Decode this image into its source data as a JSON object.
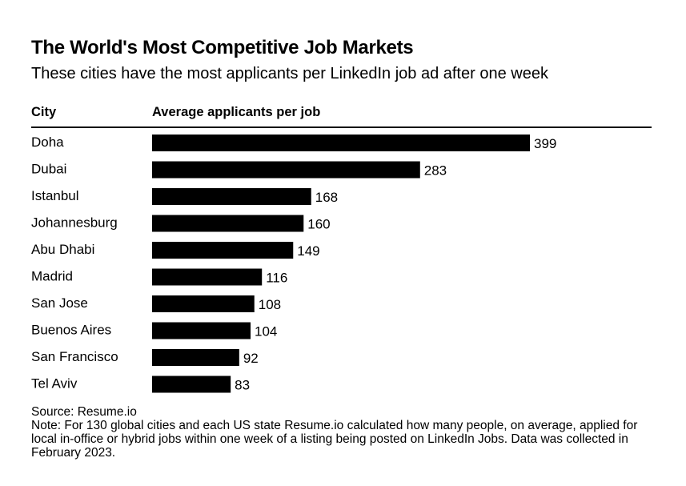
{
  "title": "The World's Most Competitive Job Markets",
  "subtitle": "These cities have the most applicants per LinkedIn job ad after one week",
  "columns": {
    "city": "City",
    "value": "Average applicants per job"
  },
  "footer": {
    "source": "Source: Resume.io",
    "note": "Note: For 130 global cities and each US state Resume.io calculated how many people, on average, applied for local in-office or hybrid jobs within one week of a listing being posted on LinkedIn Jobs. Data was collected in February 2023."
  },
  "colors": {
    "bar": "#000000",
    "text": "#000000",
    "background": "#ffffff"
  },
  "chart_data": {
    "type": "bar",
    "orientation": "horizontal",
    "categories": [
      "Doha",
      "Dubai",
      "Istanbul",
      "Johannesburg",
      "Abu Dhabi",
      "Madrid",
      "San Jose",
      "Buenos Aires",
      "San Francisco",
      "Tel Aviv"
    ],
    "values": [
      399,
      283,
      168,
      160,
      149,
      116,
      108,
      104,
      92,
      83
    ],
    "xlim": [
      0,
      399
    ],
    "grid": false,
    "data_labels": true
  }
}
